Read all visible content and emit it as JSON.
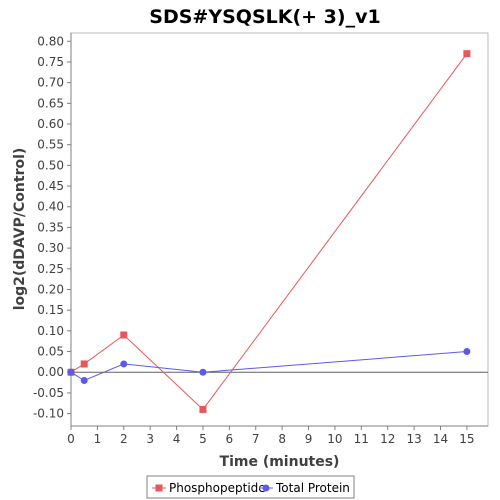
{
  "chart_data": {
    "type": "line",
    "title": "SDS#YSQSLK(+ 3)_v1",
    "xlabel": "Time (minutes)",
    "ylabel": "log2(dDAVP/Control)",
    "xlim": [
      0,
      15.8
    ],
    "ylim": [
      -0.13,
      0.82
    ],
    "xticks": [
      "0",
      "1",
      "2",
      "3",
      "4",
      "5",
      "6",
      "7",
      "8",
      "9",
      "10",
      "11",
      "12",
      "13",
      "14",
      "15"
    ],
    "yticks": [
      "-0.10",
      "-0.05",
      "0.00",
      "0.05",
      "0.10",
      "0.15",
      "0.20",
      "0.25",
      "0.30",
      "0.35",
      "0.40",
      "0.45",
      "0.50",
      "0.55",
      "0.60",
      "0.65",
      "0.70",
      "0.75",
      "0.80"
    ],
    "zero_line": true,
    "grid": false,
    "legend_position": "bottom",
    "series": [
      {
        "name": "Phosphopeptide",
        "color": "#e8575a",
        "marker": "square",
        "x": [
          0,
          0.5,
          2,
          5,
          15
        ],
        "y": [
          0.0,
          0.02,
          0.09,
          -0.09,
          0.77
        ]
      },
      {
        "name": "Total Protein",
        "color": "#5b5bea",
        "marker": "circle",
        "x": [
          0,
          0.5,
          2,
          5,
          15
        ],
        "y": [
          0.0,
          -0.02,
          0.02,
          0.0,
          0.05
        ]
      }
    ]
  }
}
